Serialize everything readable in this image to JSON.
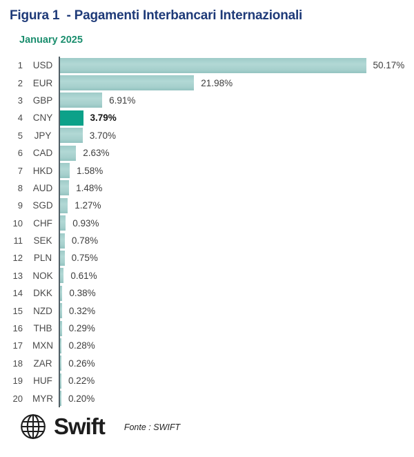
{
  "page": {
    "title": "Figura 1  - Pagamenti Interbancari Internazionali",
    "subtitle": "January 2025"
  },
  "footer": {
    "brand": "Swift",
    "source": "Fonte : SWIFT",
    "logo_icon": "globe-icon"
  },
  "colors": {
    "title": "#1e3a78",
    "subtitle": "#1b8e6e",
    "bar": "#a8d2cf",
    "bar_highlight": "#0ca189",
    "axis": "#515f66",
    "text": "#4a4a4a",
    "value_text": "#3d3d3d",
    "brand_text": "#1d1d1d"
  },
  "chart_data": {
    "type": "bar",
    "orientation": "horizontal",
    "title": "January 2025",
    "ranks": [
      1,
      2,
      3,
      4,
      5,
      6,
      7,
      8,
      9,
      10,
      11,
      12,
      13,
      14,
      15,
      16,
      17,
      18,
      19,
      20
    ],
    "categories": [
      "USD",
      "EUR",
      "GBP",
      "CNY",
      "JPY",
      "CAD",
      "HKD",
      "AUD",
      "SGD",
      "CHF",
      "SEK",
      "PLN",
      "NOK",
      "DKK",
      "NZD",
      "THB",
      "MXN",
      "ZAR",
      "HUF",
      "MYR"
    ],
    "values": [
      50.17,
      21.98,
      6.91,
      3.79,
      3.7,
      2.63,
      1.58,
      1.48,
      1.27,
      0.93,
      0.78,
      0.75,
      0.61,
      0.38,
      0.32,
      0.29,
      0.28,
      0.26,
      0.22,
      0.2
    ],
    "labels": [
      "50.17%",
      "21.98%",
      "6.91%",
      "3.79%",
      "3.70%",
      "2.63%",
      "1.58%",
      "1.48%",
      "1.27%",
      "0.93%",
      "0.78%",
      "0.75%",
      "0.61%",
      "0.38%",
      "0.32%",
      "0.29%",
      "0.28%",
      "0.26%",
      "0.22%",
      "0.20%"
    ],
    "highlight_category": "CNY",
    "unit": "%",
    "xlim": [
      0,
      57
    ],
    "grid": false,
    "legend": false
  }
}
